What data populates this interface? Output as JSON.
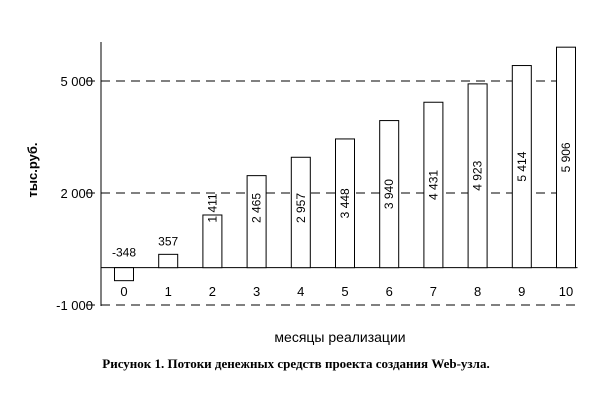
{
  "chart_data": {
    "type": "bar",
    "categories": [
      "0",
      "1",
      "2",
      "3",
      "4",
      "5",
      "6",
      "7",
      "8",
      "9",
      "10"
    ],
    "values": [
      -348,
      357,
      1411,
      2465,
      2957,
      3448,
      3940,
      4431,
      4923,
      5414,
      5906
    ],
    "value_labels": [
      "-348",
      "357",
      "1 411",
      "2 465",
      "2 957",
      "3 448",
      "3 940",
      "4 431",
      "4 923",
      "5 414",
      "5 906"
    ],
    "title": "",
    "xlabel": "месяцы реализации",
    "ylabel": "тыс.руб.",
    "ylim": [
      -1000,
      6000
    ],
    "yticks": [
      -1000,
      2000,
      5000
    ],
    "ytick_labels": [
      "-1 000",
      "2 000",
      "5 000"
    ],
    "gridlines": "dashed at y ticks",
    "bar_color": "#ffffff",
    "bar_edge_color": "#000000"
  },
  "caption": "Рисунок 1. Потоки денежных средств проекта создания Web-узла."
}
